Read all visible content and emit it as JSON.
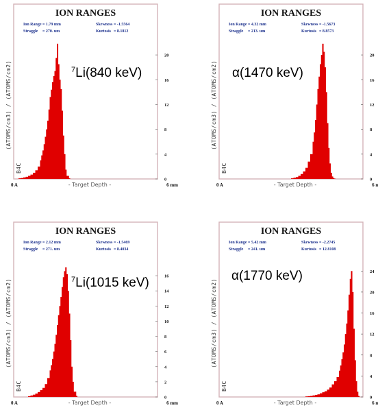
{
  "chart_data": [
    {
      "type": "bar",
      "title": "ION RANGES",
      "stats": [
        {
          "label": "Ion Range",
          "value": "= 1.79 mm"
        },
        {
          "label": "Skewness",
          "value": "= -1.5564"
        },
        {
          "label": "Straggle",
          "value": "= 270. um"
        },
        {
          "label": "Kurtosis",
          "value": "= 8.1812"
        }
      ],
      "annotation": {
        "sup": "7",
        "text": "Li(840 keV)"
      },
      "ylabel": "(ATOMS/cm3) / (ATOMS/cm2)",
      "xlabel": "- Target Depth -",
      "x_start_label": "0 A",
      "x_end_label": "6 mm",
      "target_label": "B4C",
      "xlim": [
        0,
        6
      ],
      "ylim": [
        0,
        22
      ],
      "yticks": [
        0,
        4,
        8,
        12,
        16,
        20
      ],
      "x": [
        0.2,
        0.3,
        0.4,
        0.5,
        0.6,
        0.7,
        0.8,
        0.9,
        1.0,
        1.1,
        1.15,
        1.2,
        1.25,
        1.3,
        1.35,
        1.4,
        1.45,
        1.5,
        1.55,
        1.6,
        1.65,
        1.7,
        1.75,
        1.8,
        1.85,
        1.9,
        1.95,
        2.0,
        2.05,
        2.1,
        2.15,
        2.2,
        2.3
      ],
      "values": [
        0.1,
        0.15,
        0.25,
        0.35,
        0.5,
        0.7,
        1.0,
        1.4,
        2.0,
        3.0,
        3.8,
        4.6,
        5.6,
        6.8,
        8.0,
        9.4,
        11.2,
        13.2,
        14.4,
        15.6,
        16.6,
        17.4,
        19.5,
        21.8,
        18.5,
        16.0,
        14.5,
        11.0,
        7.0,
        4.0,
        1.5,
        0.5,
        0.1
      ]
    },
    {
      "type": "bar",
      "title": "ION RANGES",
      "stats": [
        {
          "label": "Ion Range",
          "value": "= 4.32 mm"
        },
        {
          "label": "Skewness",
          "value": "= -1.5673"
        },
        {
          "label": "Straggle",
          "value": "= 213. um"
        },
        {
          "label": "Kurtosis",
          "value": "= 8.8573"
        }
      ],
      "annotation": {
        "sup": "",
        "text": "α(1470 keV)"
      },
      "ylabel": "(ATOMS/cm3) / (ATOMS/cm2)",
      "xlabel": "- Target Depth -",
      "x_start_label": "0 A",
      "x_end_label": "6 mm",
      "target_label": "B4C",
      "xlim": [
        0,
        6
      ],
      "ylim": [
        0,
        22
      ],
      "yticks": [
        0,
        4,
        8,
        12,
        16,
        20
      ],
      "x": [
        3.0,
        3.1,
        3.2,
        3.3,
        3.4,
        3.5,
        3.6,
        3.7,
        3.8,
        3.9,
        3.95,
        4.0,
        4.05,
        4.1,
        4.15,
        4.2,
        4.25,
        4.3,
        4.35,
        4.4,
        4.45,
        4.5,
        4.55,
        4.6,
        4.65,
        4.7,
        4.75,
        4.8
      ],
      "values": [
        0.1,
        0.2,
        0.3,
        0.5,
        0.8,
        1.2,
        1.8,
        2.8,
        4.0,
        6.0,
        7.5,
        9.5,
        12.0,
        14.5,
        16.5,
        18.5,
        20.0,
        21.8,
        20.5,
        18.0,
        14.0,
        9.0,
        5.0,
        2.5,
        1.0,
        0.4,
        0.15,
        0.05
      ]
    },
    {
      "type": "bar",
      "title": "ION RANGES",
      "stats": [
        {
          "label": "Ion Range",
          "value": "= 2.12 mm"
        },
        {
          "label": "Skewness",
          "value": "= -1.5469"
        },
        {
          "label": "Straggle",
          "value": "= 271. um"
        },
        {
          "label": "Kurtosis",
          "value": "= 8.4034"
        }
      ],
      "annotation": {
        "sup": "7",
        "text": "Li(1015 keV)"
      },
      "ylabel": "(ATOMS/cm3) / (ATOMS/cm2)",
      "xlabel": "- Target Depth -",
      "x_start_label": "0 A",
      "x_end_label": "6 mm",
      "target_label": "B4C",
      "xlim": [
        0,
        6
      ],
      "ylim": [
        0,
        18
      ],
      "yticks": [
        0,
        2,
        4,
        6,
        8,
        10,
        12,
        14,
        16
      ],
      "x": [
        0.6,
        0.7,
        0.8,
        0.9,
        1.0,
        1.1,
        1.2,
        1.3,
        1.4,
        1.5,
        1.55,
        1.6,
        1.65,
        1.7,
        1.75,
        1.8,
        1.85,
        1.9,
        1.95,
        2.0,
        2.05,
        2.1,
        2.15,
        2.2,
        2.25,
        2.3,
        2.35,
        2.4,
        2.45,
        2.5,
        2.6
      ],
      "values": [
        0.1,
        0.2,
        0.3,
        0.45,
        0.65,
        0.9,
        1.2,
        1.7,
        2.5,
        3.5,
        4.2,
        5.0,
        6.0,
        7.0,
        8.2,
        9.5,
        10.8,
        12.0,
        13.2,
        14.5,
        15.8,
        16.6,
        17.1,
        16.2,
        14.0,
        11.0,
        7.5,
        4.0,
        2.0,
        0.7,
        0.15
      ]
    },
    {
      "type": "bar",
      "title": "ION RANGES",
      "stats": [
        {
          "label": "Ion Range",
          "value": "= 5.42 mm"
        },
        {
          "label": "Skewness",
          "value": "= -2.2745"
        },
        {
          "label": "Straggle",
          "value": "= 241. um"
        },
        {
          "label": "Kurtosis",
          "value": "= 12.8108"
        }
      ],
      "annotation": {
        "sup": "",
        "text": "α(1770 keV)"
      },
      "ylabel": "(ATOMS/cm3) / (ATOMS/cm2)",
      "xlabel": "- Target Depth -",
      "x_start_label": "0 A",
      "x_end_label": "6 mm",
      "target_label": "B4C",
      "xlim": [
        0,
        6
      ],
      "ylim": [
        0,
        26
      ],
      "yticks": [
        0,
        4,
        8,
        12,
        16,
        20,
        24
      ],
      "x": [
        3.6,
        3.7,
        3.8,
        3.9,
        4.0,
        4.1,
        4.2,
        4.3,
        4.4,
        4.5,
        4.6,
        4.7,
        4.8,
        4.9,
        5.0,
        5.05,
        5.1,
        5.15,
        5.2,
        5.25,
        5.3,
        5.35,
        5.4,
        5.45,
        5.5,
        5.55,
        5.6,
        5.65,
        5.7,
        5.75,
        5.8
      ],
      "values": [
        0.1,
        0.15,
        0.2,
        0.3,
        0.4,
        0.5,
        0.7,
        0.9,
        1.1,
        1.4,
        1.8,
        2.4,
        3.0,
        3.8,
        5.0,
        6.0,
        7.2,
        8.5,
        10.0,
        12.0,
        14.0,
        16.5,
        19.5,
        22.5,
        24.0,
        20.0,
        13.0,
        7.0,
        3.0,
        1.0,
        0.2
      ]
    }
  ]
}
